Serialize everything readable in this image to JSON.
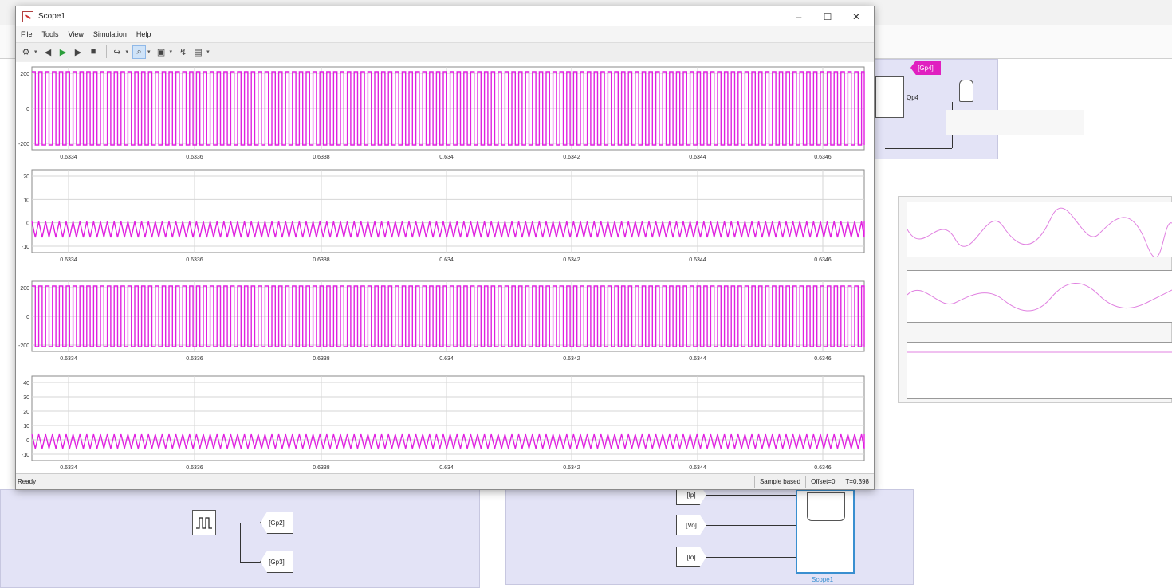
{
  "window": {
    "title": "Scope1"
  },
  "menu": [
    "File",
    "Tools",
    "View",
    "Simulation",
    "Help"
  ],
  "toolbar": {
    "icons": [
      "settings-icon",
      "step-back-icon",
      "run-icon",
      "step-forward-icon",
      "stop-icon",
      "highlight-icon",
      "zoom-icon",
      "autoscale-icon",
      "triggers-icon",
      "measurements-icon"
    ]
  },
  "status": {
    "text": "Ready",
    "mode": "Sample based",
    "offset": "Offset=0",
    "time": "T=0.398"
  },
  "colors": {
    "signal": "#e020e0",
    "grid": "#d6d6d6",
    "subsystem": "#e3e3f6",
    "goto_tag": "#e020c0"
  },
  "x_axis": {
    "ticks": [
      "0.6334",
      "0.6336",
      "0.6338",
      "0.634",
      "0.6342",
      "0.6344",
      "0.6346"
    ]
  },
  "axes_panels": [
    {
      "ytick_labels": [
        "200",
        "0",
        "-200"
      ],
      "signal": "square-wave"
    },
    {
      "ytick_labels": [
        "20",
        "10",
        "0",
        "-10"
      ],
      "signal": "ripple"
    },
    {
      "ytick_labels": [
        "200",
        "0",
        "-200"
      ],
      "signal": "square-wave"
    },
    {
      "ytick_labels": [
        "40",
        "30",
        "20",
        "10",
        "0",
        "-10"
      ],
      "signal": "ripple"
    }
  ],
  "model": {
    "goto_left": [
      "[Gp2]",
      "[Gp3]"
    ],
    "from_bottom": [
      "[Ip]",
      "[Vo]",
      "[Io]"
    ],
    "scope_label": "Scope1",
    "goto_top": "[Gp4]",
    "block_top_label": "Qp4"
  }
}
